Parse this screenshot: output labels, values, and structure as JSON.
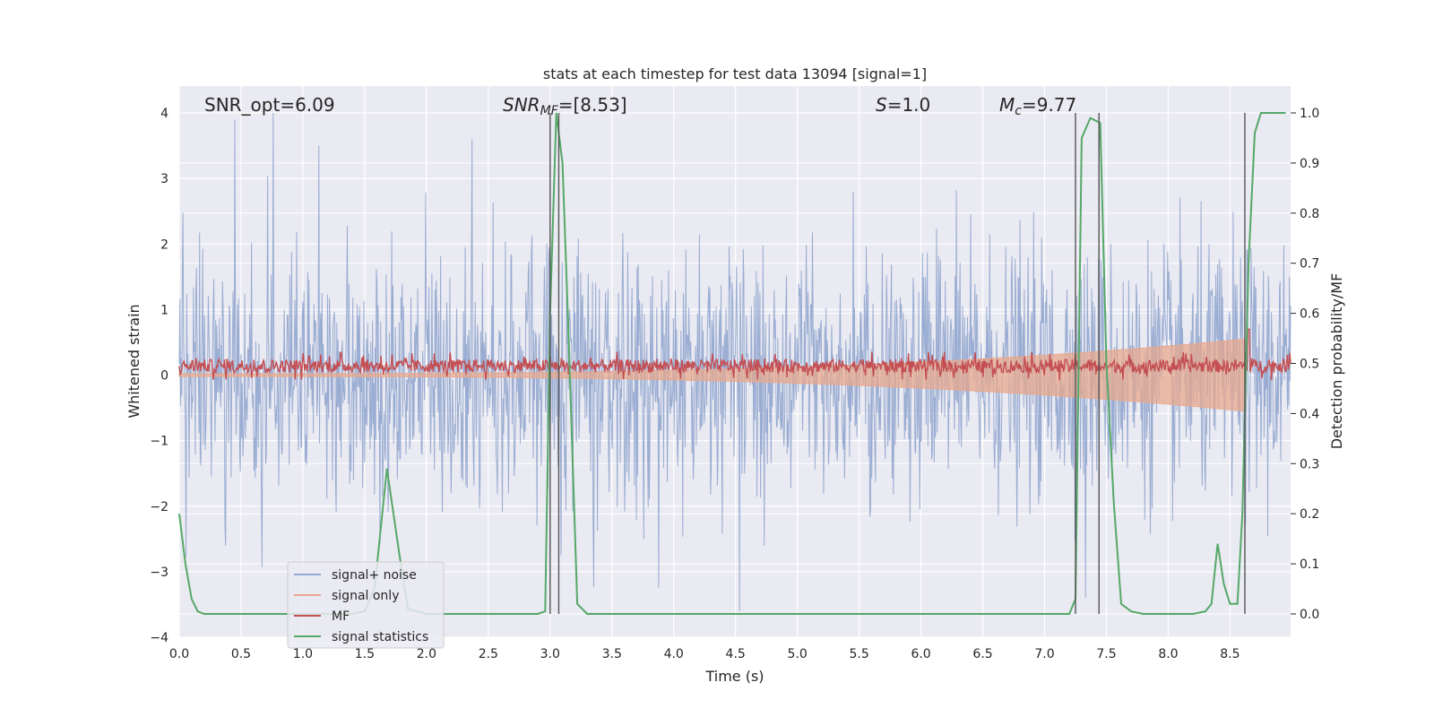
{
  "chart_data": {
    "type": "line",
    "title": "stats at each timestep for test data 13094 [signal=1]",
    "xlabel": "Time (s)",
    "ylabel": "Whitened strain",
    "ylabel_right": "Detection probability/MF",
    "xlim": [
      0.0,
      8.99
    ],
    "ylim": [
      -4.0,
      4.0
    ],
    "ylim_right": [
      0.0,
      1.0
    ],
    "x_ticks": [
      "0.0",
      "0.5",
      "1.0",
      "1.5",
      "2.0",
      "2.5",
      "3.0",
      "3.5",
      "4.0",
      "4.5",
      "5.0",
      "5.5",
      "6.0",
      "6.5",
      "7.0",
      "7.5",
      "8.0",
      "8.5"
    ],
    "y_ticks": [
      "4",
      "3",
      "2",
      "1",
      "0",
      "−1",
      "−2",
      "−3",
      "−4"
    ],
    "y_ticks_right": [
      "1.0",
      "0.9",
      "0.8",
      "0.7",
      "0.6",
      "0.5",
      "0.4",
      "0.3",
      "0.2",
      "0.1",
      "0.0"
    ],
    "grid": true,
    "legend_position": "lower-left",
    "annotations": {
      "snr_opt": "SNR_opt=6.09",
      "snr_mf_main": "SNR",
      "snr_mf_sub": "MF",
      "snr_mf_rest": "=[8.53]",
      "s_main": "S",
      "s_rest": "=1.0",
      "mc_main": "M",
      "mc_sub": "c",
      "mc_rest": "=9.77"
    },
    "vertical_lines_x": [
      3.0,
      3.07,
      7.25,
      7.44,
      8.62
    ],
    "series": [
      {
        "name": "signal+ noise",
        "color": "#95a9d0",
        "noise_sigma": 0.95,
        "peak_points": [
          [
            0.45,
            3.9
          ],
          [
            0.76,
            4.0
          ],
          [
            1.13,
            3.5
          ],
          [
            4.53,
            -3.6
          ],
          [
            7.33,
            -3.4
          ],
          [
            5.45,
            2.8
          ],
          [
            2.37,
            3.6
          ]
        ]
      },
      {
        "name": "signal only",
        "color": "#e7a88e",
        "envelope_start": 0.02,
        "envelope_end": 0.55,
        "cutoff_x": 8.62
      },
      {
        "name": "MF",
        "color": "#c44e52",
        "center": 0.14,
        "spread": 0.1,
        "peak_points": [
          [
            8.65,
            0.7
          ]
        ]
      },
      {
        "name": "signal statistics",
        "color": "#55a868",
        "x": [
          0.0,
          0.05,
          0.1,
          0.15,
          0.2,
          0.3,
          0.5,
          1.0,
          1.4,
          1.5,
          1.58,
          1.68,
          1.78,
          1.85,
          2.0,
          2.5,
          2.9,
          2.96,
          3.0,
          3.05,
          3.1,
          3.15,
          3.22,
          3.3,
          3.5,
          4.0,
          5.0,
          6.0,
          7.0,
          7.2,
          7.25,
          7.3,
          7.37,
          7.45,
          7.5,
          7.56,
          7.62,
          7.7,
          7.8,
          8.0,
          8.2,
          8.3,
          8.35,
          8.4,
          8.45,
          8.5,
          8.56,
          8.6,
          8.65,
          8.7,
          8.75,
          8.85,
          8.95
        ],
        "values": [
          0.2,
          0.1,
          0.03,
          0.005,
          0.0,
          0.0,
          0.0,
          0.0,
          0.0,
          0.005,
          0.05,
          0.29,
          0.12,
          0.01,
          0.0,
          0.0,
          0.0,
          0.005,
          0.6,
          1.0,
          0.9,
          0.55,
          0.02,
          0.0,
          0.0,
          0.0,
          0.0,
          0.0,
          0.0,
          0.0,
          0.03,
          0.95,
          0.99,
          0.98,
          0.5,
          0.22,
          0.02,
          0.005,
          0.0,
          0.0,
          0.0,
          0.005,
          0.02,
          0.14,
          0.06,
          0.02,
          0.02,
          0.2,
          0.7,
          0.96,
          1.0,
          1.0,
          1.0
        ]
      }
    ]
  }
}
